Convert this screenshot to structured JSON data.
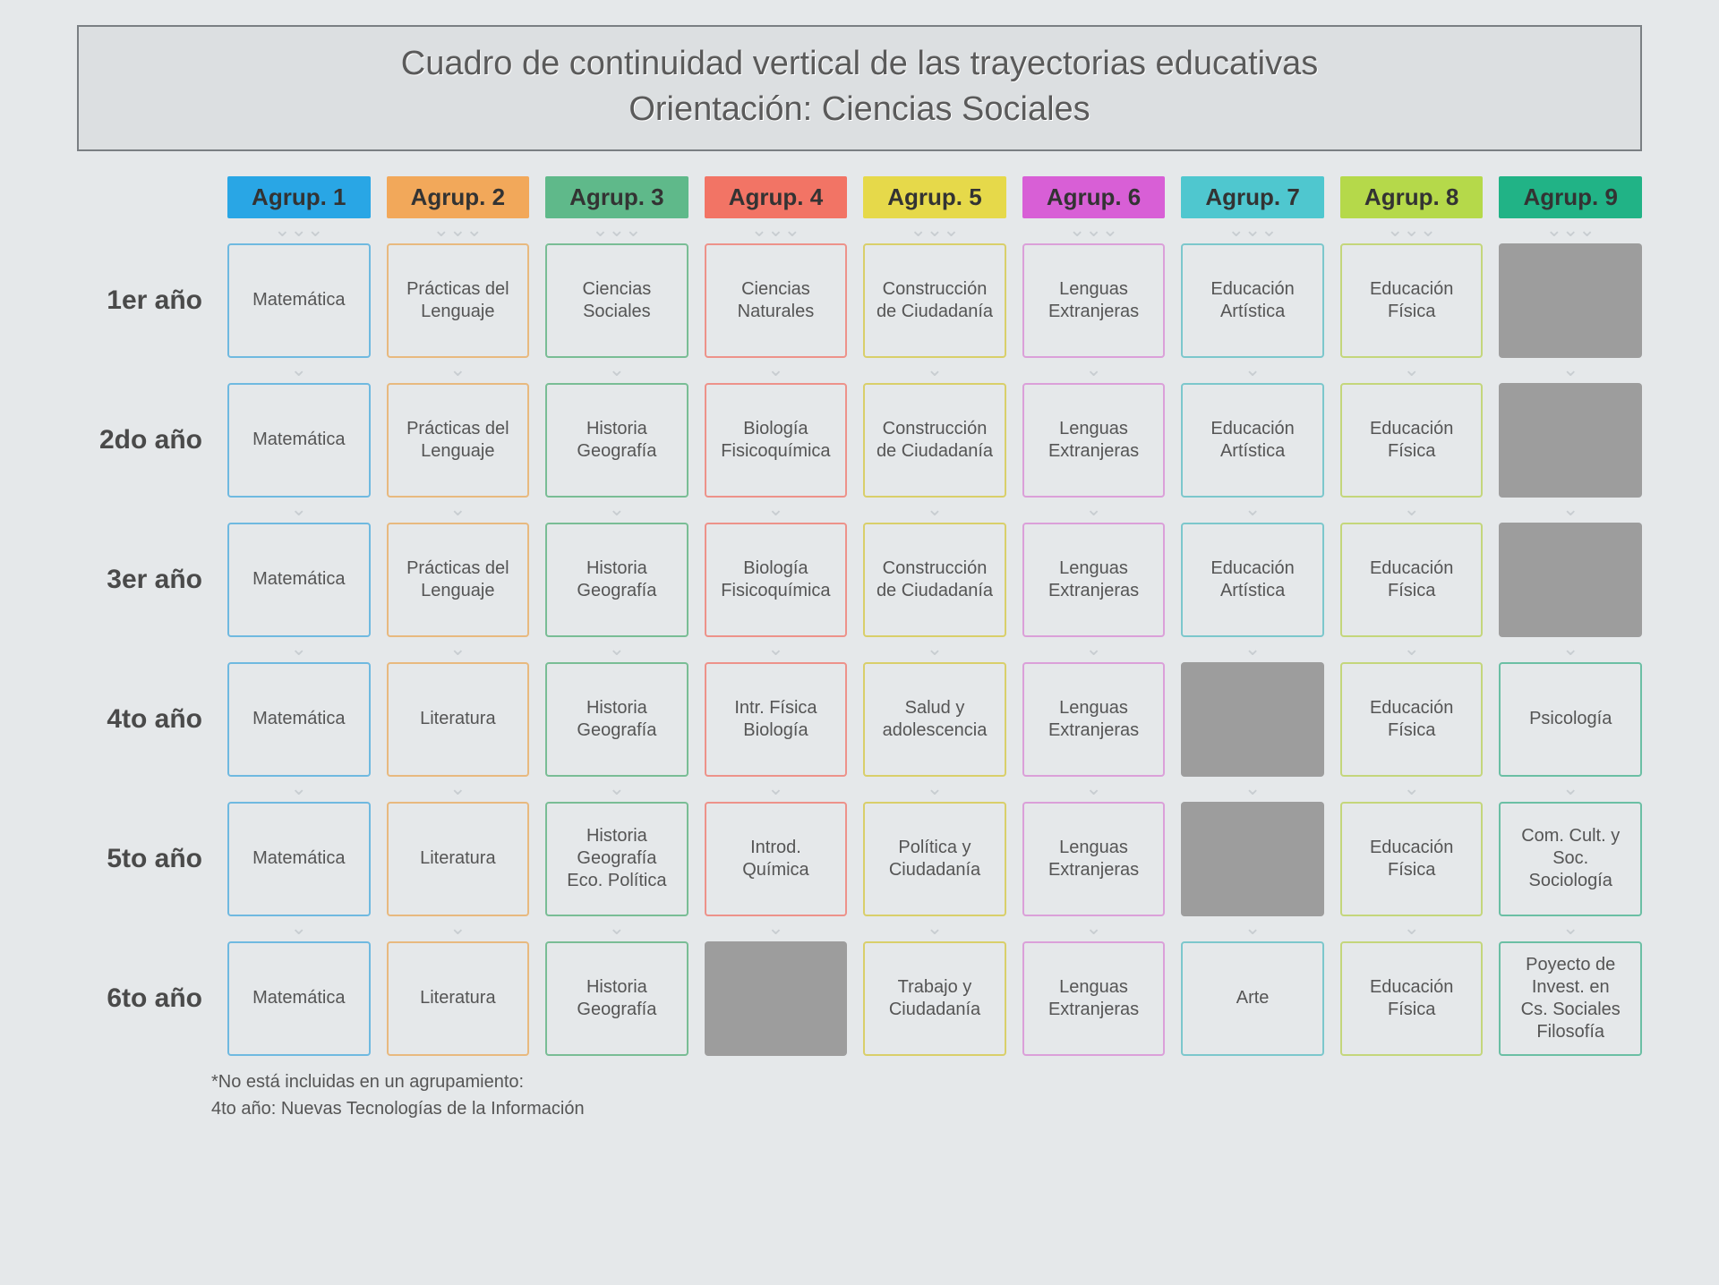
{
  "title": {
    "line1": "Cuadro de continuidad vertical de las trayectorias educativas",
    "line2": "Orientación: Ciencias Sociales"
  },
  "arrow_glyph": "⌄⌄⌄",
  "columns": [
    {
      "label": "Agrup. 1",
      "bg": "#29a6e5",
      "border": "#6fb9e0"
    },
    {
      "label": "Agrup. 2",
      "bg": "#f2a85a",
      "border": "#e8b97f"
    },
    {
      "label": "Agrup. 3",
      "bg": "#5fb98a",
      "border": "#79bd95"
    },
    {
      "label": "Agrup. 4",
      "bg": "#f27465",
      "border": "#ed928a"
    },
    {
      "label": "Agrup. 5",
      "bg": "#e6d94a",
      "border": "#d9cf6a"
    },
    {
      "label": "Agrup. 6",
      "bg": "#d85fd6",
      "border": "#dba0d9"
    },
    {
      "label": "Agrup. 7",
      "bg": "#4fc7cf",
      "border": "#7cc7cc"
    },
    {
      "label": "Agrup. 8",
      "bg": "#b5d94a",
      "border": "#c4d67b"
    },
    {
      "label": "Agrup. 9",
      "bg": "#21b386",
      "border": "#6bbfa4"
    }
  ],
  "rows": [
    {
      "label": "1er año",
      "cells": [
        "Matemática",
        "Prácticas del\nLenguaje",
        "Ciencias\nSociales",
        "Ciencias\nNaturales",
        "Construcción\nde Ciudadanía",
        "Lenguas\nExtranjeras",
        "Educación\nArtística",
        "Educación\nFísica",
        null
      ]
    },
    {
      "label": "2do año",
      "cells": [
        "Matemática",
        "Prácticas del\nLenguaje",
        "Historia\nGeografía",
        "Biología\nFisicoquímica",
        "Construcción\nde Ciudadanía",
        "Lenguas\nExtranjeras",
        "Educación\nArtística",
        "Educación\nFísica",
        null
      ]
    },
    {
      "label": "3er año",
      "cells": [
        "Matemática",
        "Prácticas del\nLenguaje",
        "Historia\nGeografía",
        "Biología\nFisicoquímica",
        "Construcción\nde Ciudadanía",
        "Lenguas\nExtranjeras",
        "Educación\nArtística",
        "Educación\nFísica",
        null
      ]
    },
    {
      "label": "4to año",
      "cells": [
        "Matemática",
        "Literatura",
        "Historia\nGeografía",
        "Intr. Física\nBiología",
        "Salud y\nadolescencia",
        "Lenguas\nExtranjeras",
        null,
        "Educación\nFísica",
        "Psicología"
      ]
    },
    {
      "label": "5to año",
      "cells": [
        "Matemática",
        "Literatura",
        "Historia\nGeografía\nEco. Política",
        "Introd.\nQuímica",
        "Política y\nCiudadanía",
        "Lenguas\nExtranjeras",
        null,
        "Educación\nFísica",
        "Com. Cult. y Soc.\nSociología"
      ]
    },
    {
      "label": "6to año",
      "cells": [
        "Matemática",
        "Literatura",
        "Historia\nGeografía",
        null,
        "Trabajo y\nCiudadanía",
        "Lenguas\nExtranjeras",
        "Arte",
        "Educación\nFísica",
        "Poyecto de\nInvest. en\nCs. Sociales\nFilosofía"
      ]
    }
  ],
  "footnote": {
    "line1": "*No está incluidas en un agrupamiento:",
    "line2": "4to año: Nuevas Tecnologías de la Información"
  }
}
